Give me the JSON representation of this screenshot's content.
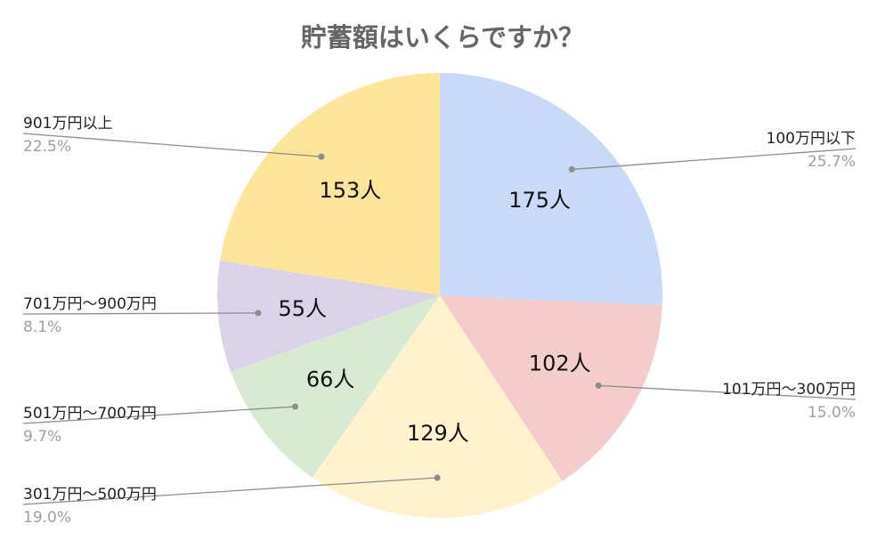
{
  "chart_data": {
    "type": "pie",
    "title": "貯蓄額はいくらですか？",
    "slices": [
      {
        "category": "100万円以下",
        "count_label": "175人",
        "value": 175,
        "percent_label": "25.7%",
        "color": "#c9daf8"
      },
      {
        "category": "101万円〜300万円",
        "count_label": "102人",
        "value": 102,
        "percent_label": "15.0%",
        "color": "#f4cccc"
      },
      {
        "category": "301万円〜500万円",
        "count_label": "129人",
        "value": 129,
        "percent_label": "19.0%",
        "color": "#fff2cc"
      },
      {
        "category": "501万円〜700万円",
        "count_label": "66人",
        "value": 66,
        "percent_label": "9.7%",
        "color": "#d9ead3"
      },
      {
        "category": "701万円〜900万円",
        "count_label": "55人",
        "value": 55,
        "percent_label": "8.1%",
        "color": "#d9d2e9"
      },
      {
        "category": "901万円以上",
        "count_label": "153人",
        "value": 153,
        "percent_label": "22.5%",
        "color": "#ffe599"
      }
    ]
  }
}
